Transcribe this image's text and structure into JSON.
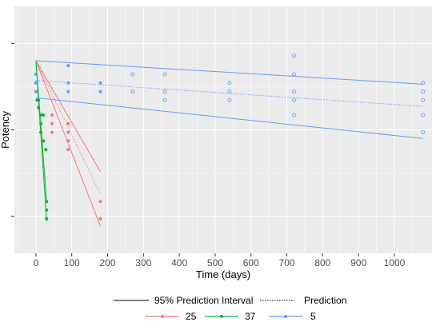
{
  "chart_data": {
    "type": "scatter",
    "title": "",
    "xlabel": "Time (days)",
    "ylabel": "Potency",
    "xlim": [
      -60,
      1105
    ],
    "ylim": [
      0,
      10
    ],
    "x_ticks": [
      0,
      100,
      200,
      300,
      400,
      500,
      600,
      700,
      800,
      900,
      1000
    ],
    "y_ticks": [
      1.5,
      5,
      8.5
    ],
    "y_tick_labels_shown": false,
    "grid": true,
    "panel_background": "#ebebeb",
    "legend_position": "bottom",
    "line_legend": [
      {
        "label": "95% Prediction Interval",
        "style": "solid"
      },
      {
        "label": "Prediction",
        "style": "dotted"
      }
    ],
    "series": [
      {
        "name": "25",
        "color": "#f8766d",
        "points": [
          {
            "x": 0,
            "y": 7.25,
            "filled": true
          },
          {
            "x": 0,
            "y": 6.9,
            "filled": true
          },
          {
            "x": 0,
            "y": 6.55,
            "filled": true
          },
          {
            "x": 45,
            "y": 5.6,
            "filled": true
          },
          {
            "x": 45,
            "y": 5.25,
            "filled": true
          },
          {
            "x": 45,
            "y": 4.9,
            "filled": true
          },
          {
            "x": 90,
            "y": 5.25,
            "filled": true
          },
          {
            "x": 90,
            "y": 4.9,
            "filled": true
          },
          {
            "x": 90,
            "y": 4.55,
            "filled": true
          },
          {
            "x": 90,
            "y": 4.2,
            "filled": true
          },
          {
            "x": 180,
            "y": 2.1,
            "filled": true
          },
          {
            "x": 180,
            "y": 1.4,
            "filled": true
          }
        ],
        "prediction": [
          [
            0,
            7.8
          ],
          [
            180,
            2.4
          ]
        ],
        "interval_upper": [
          [
            0,
            7.8
          ],
          [
            180,
            3.3
          ]
        ],
        "interval_lower": [
          [
            0,
            7.8
          ],
          [
            180,
            1.1
          ]
        ]
      },
      {
        "name": "37",
        "color": "#00ba38",
        "points": [
          {
            "x": 0,
            "y": 7.25,
            "filled": true
          },
          {
            "x": 0,
            "y": 6.9,
            "filled": true
          },
          {
            "x": 3,
            "y": 6.55,
            "filled": true
          },
          {
            "x": 3,
            "y": 6.2,
            "filled": true
          },
          {
            "x": 7,
            "y": 6.2,
            "filled": true
          },
          {
            "x": 7,
            "y": 5.9,
            "filled": true
          },
          {
            "x": 14,
            "y": 5.6,
            "filled": true
          },
          {
            "x": 14,
            "y": 5.25,
            "filled": true
          },
          {
            "x": 14,
            "y": 4.9,
            "filled": true
          },
          {
            "x": 21,
            "y": 5.6,
            "filled": true
          },
          {
            "x": 21,
            "y": 4.55,
            "filled": true
          },
          {
            "x": 28,
            "y": 4.2,
            "filled": true
          },
          {
            "x": 30,
            "y": 2.1,
            "filled": true
          },
          {
            "x": 30,
            "y": 1.75,
            "filled": true
          },
          {
            "x": 30,
            "y": 1.4,
            "filled": true
          }
        ],
        "prediction": [
          [
            0,
            7.8
          ],
          [
            30,
            1.4
          ]
        ],
        "interval_upper": [
          [
            0,
            7.8
          ],
          [
            30,
            2.1
          ]
        ],
        "interval_lower": [
          [
            0,
            7.8
          ],
          [
            30,
            1.3
          ]
        ]
      },
      {
        "name": "5",
        "color": "#619cff",
        "points": [
          {
            "x": 0,
            "y": 7.25,
            "filled": true
          },
          {
            "x": 0,
            "y": 6.9,
            "filled": true
          },
          {
            "x": 0,
            "y": 6.55,
            "filled": true
          },
          {
            "x": 90,
            "y": 7.6,
            "filled": true
          },
          {
            "x": 90,
            "y": 6.9,
            "filled": true
          },
          {
            "x": 90,
            "y": 6.55,
            "filled": true
          },
          {
            "x": 180,
            "y": 6.9,
            "filled": true
          },
          {
            "x": 180,
            "y": 6.55,
            "filled": true
          },
          {
            "x": 270,
            "y": 7.25,
            "filled": false
          },
          {
            "x": 270,
            "y": 6.55,
            "filled": false
          },
          {
            "x": 360,
            "y": 7.25,
            "filled": false
          },
          {
            "x": 360,
            "y": 6.55,
            "filled": false
          },
          {
            "x": 360,
            "y": 6.2,
            "filled": false
          },
          {
            "x": 540,
            "y": 6.9,
            "filled": false
          },
          {
            "x": 540,
            "y": 6.55,
            "filled": false
          },
          {
            "x": 540,
            "y": 6.2,
            "filled": false
          },
          {
            "x": 720,
            "y": 8.0,
            "filled": false
          },
          {
            "x": 720,
            "y": 7.25,
            "filled": false
          },
          {
            "x": 720,
            "y": 6.55,
            "filled": false
          },
          {
            "x": 720,
            "y": 6.2,
            "filled": false
          },
          {
            "x": 720,
            "y": 5.6,
            "filled": false
          },
          {
            "x": 1080,
            "y": 6.9,
            "filled": false
          },
          {
            "x": 1080,
            "y": 6.55,
            "filled": false
          },
          {
            "x": 1080,
            "y": 6.2,
            "filled": false
          },
          {
            "x": 1080,
            "y": 5.6,
            "filled": false
          },
          {
            "x": 1080,
            "y": 4.9,
            "filled": false
          }
        ],
        "prediction": [
          [
            0,
            7.0
          ],
          [
            1080,
            5.95
          ]
        ],
        "interval_upper": [
          [
            0,
            7.8
          ],
          [
            1080,
            6.85
          ]
        ],
        "interval_lower": [
          [
            0,
            6.3
          ],
          [
            1080,
            4.65
          ]
        ]
      }
    ]
  }
}
